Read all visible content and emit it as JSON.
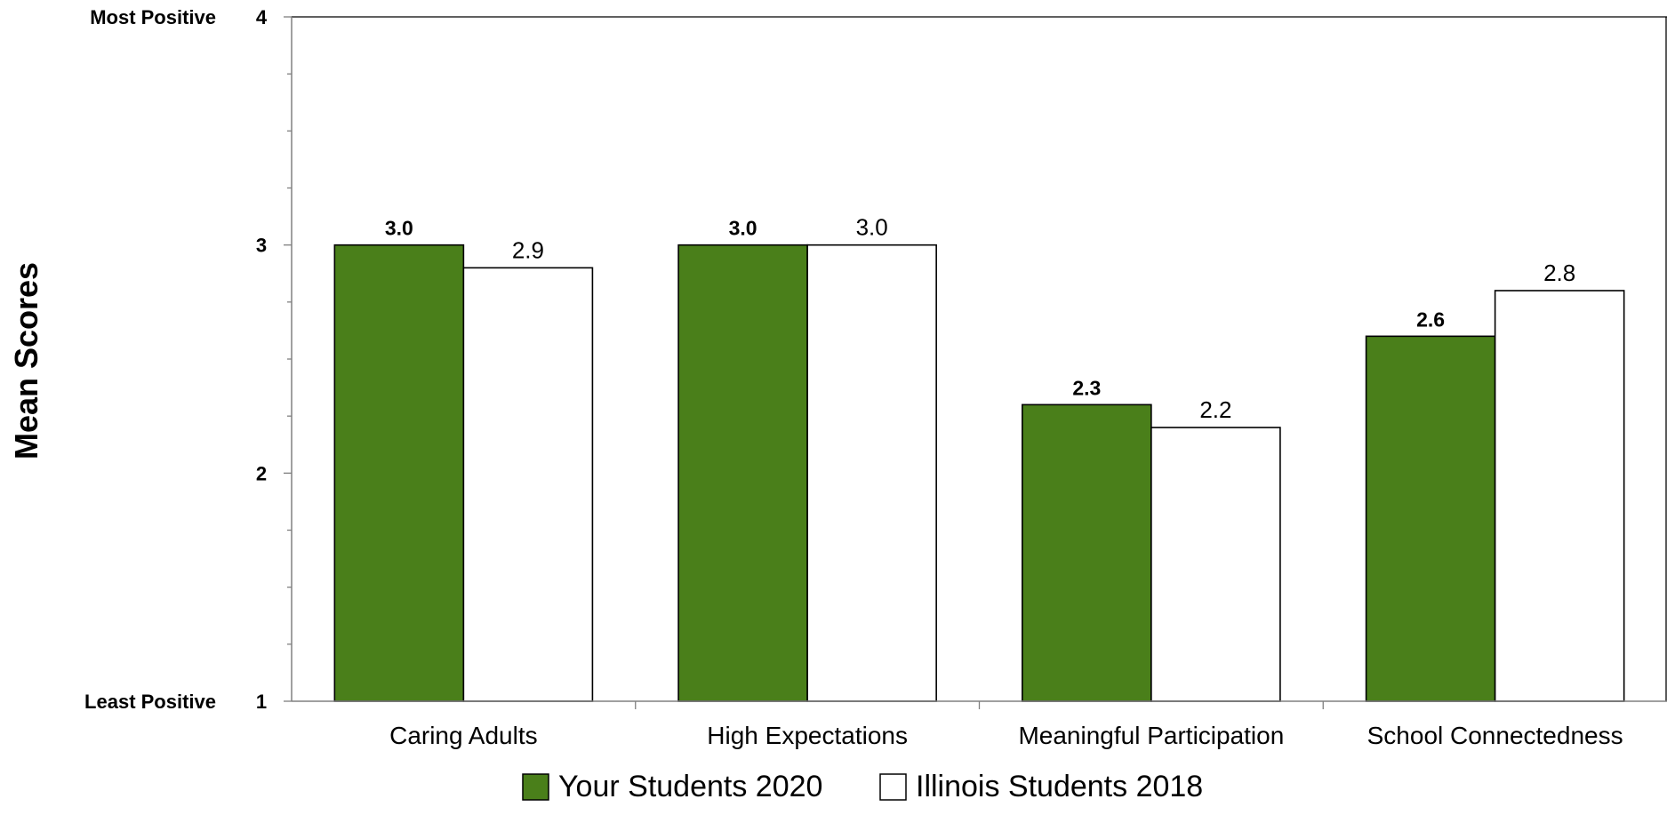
{
  "chart_data": {
    "type": "bar",
    "categories": [
      "Caring Adults",
      "High Expectations",
      "Meaningful Participation",
      "School Connectedness"
    ],
    "series": [
      {
        "name": "Your Students 2020",
        "values": [
          3.0,
          3.0,
          2.3,
          2.6
        ],
        "labels": [
          "3.0",
          "3.0",
          "2.3",
          "2.6"
        ],
        "color": "#4a7f1a"
      },
      {
        "name": "Illinois Students 2018",
        "values": [
          2.9,
          3.0,
          2.2,
          2.8
        ],
        "labels": [
          "2.9",
          "3.0",
          "2.2",
          "2.8"
        ],
        "color": "#ffffff"
      }
    ],
    "ylabel": "Mean Scores",
    "xlabel": "",
    "ylim": [
      1,
      4
    ],
    "yticks": [
      {
        "value": 1,
        "label": "1",
        "word": "Least Positive"
      },
      {
        "value": 2,
        "label": "2",
        "word": ""
      },
      {
        "value": 3,
        "label": "3",
        "word": ""
      },
      {
        "value": 4,
        "label": "4",
        "word": "Most Positive"
      }
    ],
    "grid": false,
    "legend_position": "bottom-center"
  }
}
